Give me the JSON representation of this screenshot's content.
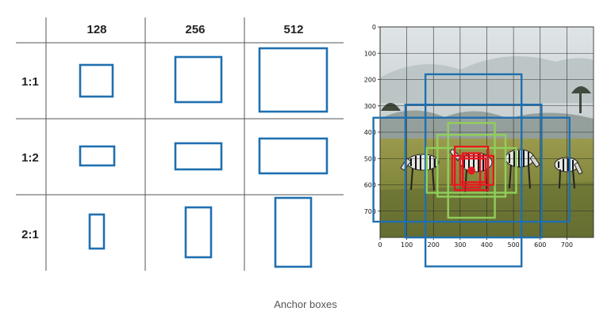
{
  "caption": "Anchor boxes",
  "grid": {
    "column_headers": [
      "128",
      "256",
      "512"
    ],
    "row_headers": [
      "1:1",
      "1:2",
      "2:1"
    ]
  },
  "plot": {
    "x_ticks": [
      "0",
      "100",
      "200",
      "300",
      "400",
      "500",
      "600",
      "700"
    ],
    "y_ticks": [
      "0",
      "100",
      "200",
      "300",
      "400",
      "500",
      "600",
      "700"
    ],
    "xlim": [
      0,
      800
    ],
    "ylim": [
      800,
      0
    ],
    "grid": true,
    "anchor_center": [
      342,
      546
    ],
    "boxes": [
      {
        "color": "#1f6fb0",
        "x": [
          170,
          530
        ],
        "y": [
          180,
          910
        ]
      },
      {
        "color": "#1f6fb0",
        "x": [
          95,
          605
        ],
        "y": [
          295,
          800
        ]
      },
      {
        "color": "#1f6fb0",
        "x": [
          -25,
          710
        ],
        "y": [
          345,
          740
        ]
      },
      {
        "color": "#8fcf5b",
        "x": [
          255,
          430
        ],
        "y": [
          365,
          725
        ]
      },
      {
        "color": "#8fcf5b",
        "x": [
          215,
          470
        ],
        "y": [
          410,
          645
        ]
      },
      {
        "color": "#8fcf5b",
        "x": [
          175,
          510
        ],
        "y": [
          460,
          630
        ]
      },
      {
        "color": "#e8171f",
        "x": [
          280,
          405
        ],
        "y": [
          455,
          620
        ]
      },
      {
        "color": "#e8171f",
        "x": [
          310,
          375
        ],
        "y": [
          480,
          610
        ]
      },
      {
        "color": "#e8171f",
        "x": [
          270,
          425
        ],
        "y": [
          490,
          600
        ]
      },
      {
        "color": "#e8171f",
        "x": [
          300,
          395
        ],
        "y": [
          500,
          590
        ]
      }
    ]
  },
  "colors": {
    "anchor_blue": "#1f6fb0",
    "anchor_green": "#8fcf5b",
    "anchor_red": "#e8171f"
  }
}
